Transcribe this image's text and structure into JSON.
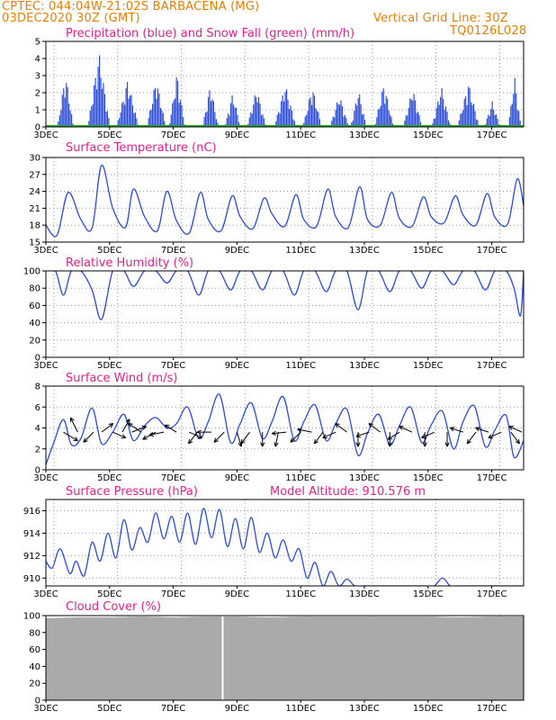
{
  "header": {
    "line1_left": "CPTEC:  044:04W-21:02S  BARBACENA (MG)",
    "line2_left": "03DEC2020 30Z (GMT)",
    "line1_right": "Vertical Grid Line: 30Z",
    "line2_right": "TQ0126L028"
  },
  "colors": {
    "series": "#2a4bd7",
    "snow": "#22aa22",
    "cloud": "#aaaaaa",
    "title": "#e0208f",
    "header": "#e67e00"
  },
  "x_tick_labels": [
    "3DEC",
    "5DEC",
    "7DEC",
    "9DEC",
    "11DEC",
    "13DEC",
    "15DEC",
    "17DEC"
  ],
  "chart_data": [
    {
      "id": "precip",
      "type": "bar",
      "title": "Precipitation (blue) and Snow Fall (green) (mm/h)",
      "ylim": [
        0,
        5
      ],
      "yticks": [
        0,
        1,
        2,
        3,
        4,
        5
      ],
      "x_unit": "day (3.0 = 03DEC 00Z)",
      "xlim": [
        3.0,
        18.0
      ],
      "events": [
        {
          "center": 3.6,
          "peak": 3.2,
          "width": 0.25
        },
        {
          "center": 4.65,
          "peak": 4.4,
          "width": 0.35
        },
        {
          "center": 5.55,
          "peak": 2.8,
          "width": 0.35
        },
        {
          "center": 6.45,
          "peak": 2.9,
          "width": 0.3
        },
        {
          "center": 7.1,
          "peak": 3.2,
          "width": 0.25
        },
        {
          "center": 8.15,
          "peak": 2.5,
          "width": 0.25
        },
        {
          "center": 8.85,
          "peak": 2.0,
          "width": 0.25
        },
        {
          "center": 9.6,
          "peak": 2.3,
          "width": 0.3
        },
        {
          "center": 10.5,
          "peak": 2.5,
          "width": 0.35
        },
        {
          "center": 11.35,
          "peak": 2.4,
          "width": 0.3
        },
        {
          "center": 12.2,
          "peak": 1.9,
          "width": 0.3
        },
        {
          "center": 12.8,
          "peak": 2.2,
          "width": 0.25
        },
        {
          "center": 13.6,
          "peak": 2.6,
          "width": 0.3
        },
        {
          "center": 14.5,
          "peak": 2.3,
          "width": 0.3
        },
        {
          "center": 15.4,
          "peak": 2.4,
          "width": 0.3
        },
        {
          "center": 16.25,
          "peak": 2.6,
          "width": 0.35
        },
        {
          "center": 17.0,
          "peak": 1.5,
          "width": 0.25
        },
        {
          "center": 17.7,
          "peak": 3.0,
          "width": 0.2
        }
      ],
      "snow": 0
    },
    {
      "id": "temp",
      "type": "line",
      "title": "Surface Temperature (nC)",
      "ylim": [
        15,
        30
      ],
      "yticks": [
        15,
        18,
        21,
        24,
        27,
        30
      ],
      "x": [
        3.0,
        3.35,
        3.7,
        4.1,
        4.45,
        4.75,
        5.1,
        5.5,
        5.75,
        6.1,
        6.5,
        6.8,
        7.1,
        7.5,
        7.85,
        8.1,
        8.5,
        8.85,
        9.1,
        9.5,
        9.85,
        10.1,
        10.5,
        10.85,
        11.1,
        11.5,
        11.85,
        12.1,
        12.5,
        12.85,
        13.1,
        13.5,
        13.85,
        14.1,
        14.5,
        14.85,
        15.1,
        15.5,
        15.85,
        16.1,
        16.5,
        16.85,
        17.1,
        17.5,
        17.8,
        18.0
      ],
      "y": [
        18.0,
        16.2,
        23.8,
        19.0,
        17.5,
        28.6,
        21.0,
        17.6,
        24.4,
        19.5,
        17.0,
        24.0,
        18.8,
        16.6,
        23.8,
        19.0,
        17.0,
        23.2,
        19.5,
        17.4,
        22.8,
        20.0,
        17.8,
        23.4,
        19.0,
        17.8,
        24.4,
        19.5,
        17.6,
        24.8,
        19.0,
        18.0,
        23.8,
        19.2,
        17.8,
        23.0,
        19.5,
        18.4,
        23.2,
        19.8,
        18.0,
        23.6,
        19.4,
        18.2,
        26.2,
        21.4
      ]
    },
    {
      "id": "rh",
      "type": "line",
      "title": "Relative Humidity (%)",
      "ylim": [
        0,
        100
      ],
      "yticks": [
        0,
        20,
        40,
        60,
        80,
        100
      ],
      "x": [
        3.0,
        3.3,
        3.55,
        3.8,
        4.1,
        4.45,
        4.75,
        5.1,
        5.45,
        5.75,
        6.1,
        6.45,
        6.8,
        7.1,
        7.45,
        7.8,
        8.1,
        8.45,
        8.8,
        9.1,
        9.45,
        9.8,
        10.1,
        10.45,
        10.8,
        11.1,
        11.45,
        11.8,
        12.1,
        12.45,
        12.8,
        13.1,
        13.45,
        13.8,
        14.1,
        14.45,
        14.8,
        15.1,
        15.45,
        15.8,
        16.1,
        16.45,
        16.8,
        17.1,
        17.45,
        17.7,
        17.9,
        18.0
      ],
      "y": [
        100,
        100,
        72,
        100,
        100,
        78,
        44,
        100,
        100,
        82,
        100,
        100,
        86,
        100,
        100,
        72,
        100,
        100,
        78,
        100,
        100,
        78,
        100,
        100,
        72,
        100,
        100,
        76,
        100,
        100,
        55,
        100,
        100,
        76,
        100,
        100,
        80,
        100,
        100,
        84,
        100,
        100,
        78,
        100,
        100,
        80,
        48,
        100
      ]
    },
    {
      "id": "wind",
      "type": "line",
      "title": "Surface Wind (m/s)",
      "ylim": [
        0,
        8
      ],
      "yticks": [
        0,
        2,
        4,
        6,
        8
      ],
      "x": [
        3.0,
        3.25,
        3.55,
        3.8,
        4.1,
        4.45,
        4.75,
        5.1,
        5.45,
        5.75,
        6.1,
        6.45,
        6.8,
        7.1,
        7.45,
        7.8,
        8.1,
        8.45,
        8.8,
        9.1,
        9.45,
        9.8,
        10.1,
        10.45,
        10.8,
        11.1,
        11.45,
        11.8,
        12.1,
        12.45,
        12.8,
        13.1,
        13.45,
        13.8,
        14.1,
        14.45,
        14.8,
        15.1,
        15.45,
        15.8,
        16.1,
        16.45,
        16.8,
        17.1,
        17.45,
        17.7,
        18.0
      ],
      "y": [
        0.5,
        2.6,
        4.8,
        2.4,
        3.0,
        5.9,
        2.5,
        3.6,
        5.3,
        2.8,
        4.2,
        5.0,
        4.0,
        4.4,
        6.0,
        3.0,
        4.6,
        7.2,
        2.6,
        4.4,
        6.4,
        3.0,
        4.6,
        7.0,
        2.8,
        4.6,
        6.2,
        2.8,
        4.4,
        5.8,
        1.4,
        3.5,
        5.3,
        2.4,
        4.2,
        6.0,
        2.6,
        4.3,
        5.6,
        2.0,
        4.6,
        6.1,
        2.2,
        3.8,
        5.2,
        1.2,
        2.8
      ],
      "arrows": [
        {
          "x": 3.55,
          "u": 1.0,
          "v": -0.6
        },
        {
          "x": 4.0,
          "u": -0.5,
          "v": 1.0
        },
        {
          "x": 4.5,
          "u": -0.7,
          "v": -0.7
        },
        {
          "x": 4.75,
          "u": 0.8,
          "v": 0.6
        },
        {
          "x": 5.1,
          "u": 0.9,
          "v": -0.4
        },
        {
          "x": 5.4,
          "u": 0.5,
          "v": 0.9
        },
        {
          "x": 5.7,
          "u": 1.0,
          "v": 0.4
        },
        {
          "x": 6.0,
          "u": -0.9,
          "v": 0.6
        },
        {
          "x": 6.45,
          "u": -0.9,
          "v": -0.5
        },
        {
          "x": 6.7,
          "u": -1.0,
          "v": -0.2
        },
        {
          "x": 7.1,
          "u": -0.8,
          "v": 0.5
        },
        {
          "x": 7.5,
          "u": 0.9,
          "v": -0.4
        },
        {
          "x": 7.75,
          "u": -0.6,
          "v": -0.8
        },
        {
          "x": 8.2,
          "u": -1.0,
          "v": 0.0
        },
        {
          "x": 8.6,
          "u": -0.7,
          "v": -0.7
        },
        {
          "x": 9.0,
          "u": 0.3,
          "v": -1.0
        },
        {
          "x": 9.4,
          "u": -0.6,
          "v": -0.8
        },
        {
          "x": 9.8,
          "u": 0.0,
          "v": -1.0
        },
        {
          "x": 10.3,
          "u": -0.2,
          "v": -1.0
        },
        {
          "x": 10.55,
          "u": -1.0,
          "v": -0.1
        },
        {
          "x": 11.0,
          "u": -0.7,
          "v": -0.7
        },
        {
          "x": 11.35,
          "u": -1.0,
          "v": 0.2
        },
        {
          "x": 11.7,
          "u": -0.6,
          "v": -0.8
        },
        {
          "x": 12.1,
          "u": -0.9,
          "v": -0.4
        },
        {
          "x": 12.45,
          "u": -0.8,
          "v": 0.6
        },
        {
          "x": 12.8,
          "u": 0.0,
          "v": -1.0
        },
        {
          "x": 13.15,
          "u": -0.9,
          "v": -0.3
        },
        {
          "x": 13.5,
          "u": -0.8,
          "v": 0.6
        },
        {
          "x": 13.8,
          "u": 0.0,
          "v": -1.0
        },
        {
          "x": 14.1,
          "u": -0.8,
          "v": -0.5
        },
        {
          "x": 14.5,
          "u": -0.9,
          "v": 0.4
        },
        {
          "x": 14.9,
          "u": 0.0,
          "v": -1.0
        },
        {
          "x": 15.2,
          "u": -0.9,
          "v": -0.4
        },
        {
          "x": 15.6,
          "u": 0.0,
          "v": -1.0
        },
        {
          "x": 16.1,
          "u": -0.9,
          "v": 0.3
        },
        {
          "x": 16.5,
          "u": -0.6,
          "v": -0.8
        },
        {
          "x": 16.9,
          "u": -0.9,
          "v": 0.3
        },
        {
          "x": 17.3,
          "u": -0.9,
          "v": -0.4
        },
        {
          "x": 17.6,
          "u": 0.6,
          "v": -0.8
        },
        {
          "x": 17.95,
          "u": -0.9,
          "v": 0.4
        }
      ]
    },
    {
      "id": "pressure",
      "type": "line",
      "title": "Surface Pressure (hPa)",
      "annotation": "Model Altitude: 910.576 m",
      "ylim": [
        909.3,
        917
      ],
      "yticks": [
        910,
        912,
        914,
        916
      ],
      "x": [
        3.0,
        3.2,
        3.45,
        3.75,
        3.95,
        4.2,
        4.45,
        4.7,
        4.95,
        5.2,
        5.45,
        5.7,
        5.95,
        6.2,
        6.45,
        6.7,
        6.95,
        7.2,
        7.45,
        7.7,
        7.95,
        8.2,
        8.45,
        8.7,
        8.95,
        9.2,
        9.45,
        9.7,
        9.95,
        10.2,
        10.45,
        10.7,
        10.95,
        11.2,
        11.45,
        11.7,
        11.95,
        12.2,
        12.45,
        12.7,
        12.95,
        13.2,
        13.45,
        13.7,
        13.95,
        14.2,
        14.45,
        14.7,
        14.95,
        15.2,
        15.45,
        15.7,
        15.95,
        16.2,
        16.45,
        16.7,
        16.95,
        17.2,
        17.45,
        17.7,
        18.0
      ],
      "y": [
        911.5,
        910.9,
        912.6,
        910.4,
        911.5,
        910.2,
        913.2,
        911.5,
        914.0,
        911.8,
        915.2,
        912.5,
        914.5,
        913.2,
        915.8,
        913.5,
        915.5,
        913.2,
        915.8,
        913.0,
        916.2,
        913.6,
        916.1,
        912.8,
        915.3,
        912.6,
        915.4,
        912.3,
        914.0,
        911.8,
        913.4,
        911.5,
        912.6,
        910.0,
        911.4,
        909.3,
        910.6,
        909.3,
        909.9,
        909.3,
        909.3,
        909.3,
        909.3,
        909.3,
        909.3,
        909.3,
        909.3,
        909.3,
        909.3,
        909.3,
        910.0,
        909.3,
        909.3,
        909.3,
        909.3,
        909.3,
        909.3,
        909.3,
        909.3,
        909.3,
        909.3
      ]
    },
    {
      "id": "cloud",
      "type": "area",
      "title": "Cloud Cover (%)",
      "ylim": [
        0,
        100
      ],
      "yticks": [
        0,
        20,
        40,
        60,
        80,
        100
      ],
      "x": [
        3.0,
        4.0,
        5.0,
        6.0,
        7.0,
        8.0,
        9.0,
        10.0,
        11.0,
        12.0,
        13.0,
        14.0,
        15.0,
        16.0,
        17.0,
        18.0
      ],
      "y": [
        97,
        98,
        98,
        99,
        98,
        99,
        99,
        98,
        99,
        99,
        99,
        99,
        99,
        98,
        99,
        99
      ],
      "gap_x": 8.55
    }
  ]
}
